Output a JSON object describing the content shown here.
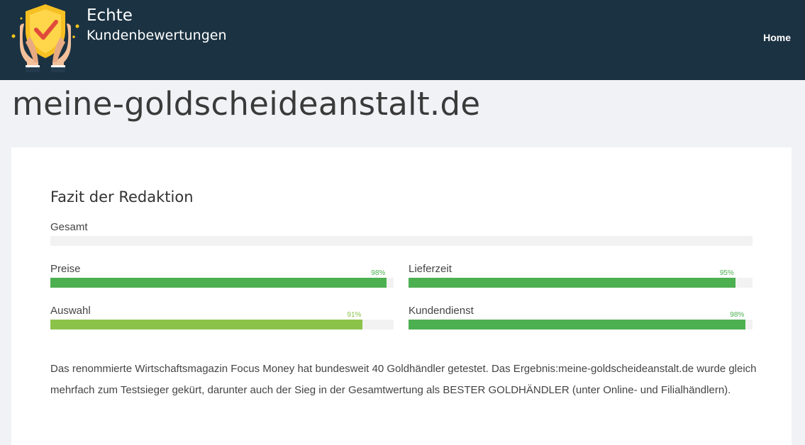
{
  "header": {
    "brand_line1": "Echte",
    "brand_line2": "Kundenbewertungen",
    "nav_home": "Home",
    "background_color": "#1b3242"
  },
  "page": {
    "title": "meine-goldscheideanstalt.de"
  },
  "review": {
    "section_title": "Fazit der Redaktion",
    "overall": {
      "label": "Gesamt",
      "percent": null
    },
    "ratings": [
      {
        "key": "preise",
        "label": "Preise",
        "percent": 98,
        "percent_label": "98%",
        "color": "#4caf50"
      },
      {
        "key": "lieferzeit",
        "label": "Lieferzeit",
        "percent": 95,
        "percent_label": "95%",
        "color": "#4caf50"
      },
      {
        "key": "auswahl",
        "label": "Auswahl",
        "percent": 91,
        "percent_label": "91%",
        "color": "#8bc34a"
      },
      {
        "key": "kundendienst",
        "label": "Kundendienst",
        "percent": 98,
        "percent_label": "98%",
        "color": "#4caf50"
      }
    ],
    "description": "Das renommierte Wirtschaftsmagazin Focus Money hat bundesweit 40 Goldhändler getestet. Das Ergebnis:meine-goldscheideanstalt.de wurde gleich mehrfach zum Testsieger gekürt, darunter auch der Sieg in der Gesamtwertung als BESTER GOLDHÄNDLER (unter Online- und Filialhändlern)."
  },
  "icons": {
    "logo": "shield-check-hands-icon"
  }
}
